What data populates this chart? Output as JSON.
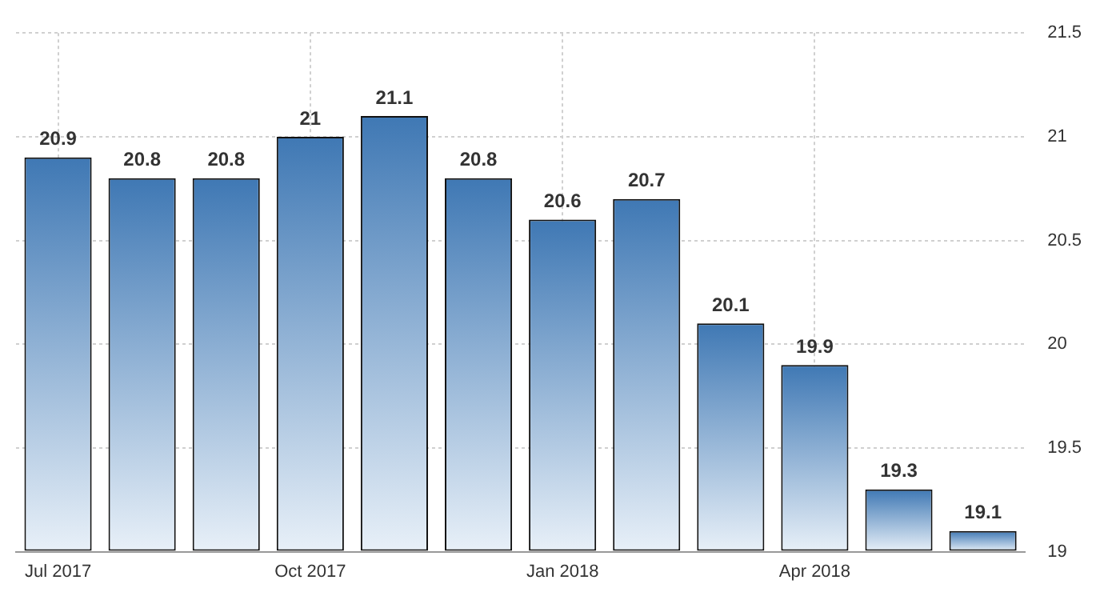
{
  "chart_data": {
    "type": "bar",
    "categories": [
      "Jul 2017",
      null,
      null,
      "Oct 2017",
      null,
      null,
      "Jan 2018",
      null,
      null,
      "Apr 2018",
      null,
      null
    ],
    "values": [
      20.9,
      20.8,
      20.8,
      21,
      21.1,
      20.8,
      20.6,
      20.7,
      20.1,
      19.9,
      19.3,
      19.1
    ],
    "color": "#3f78b4",
    "ylim": [
      19,
      21.5
    ],
    "yticks": [
      19,
      19.5,
      20,
      20.5,
      21,
      21.5
    ],
    "grid": true,
    "data_labels": true,
    "legend": false
  }
}
